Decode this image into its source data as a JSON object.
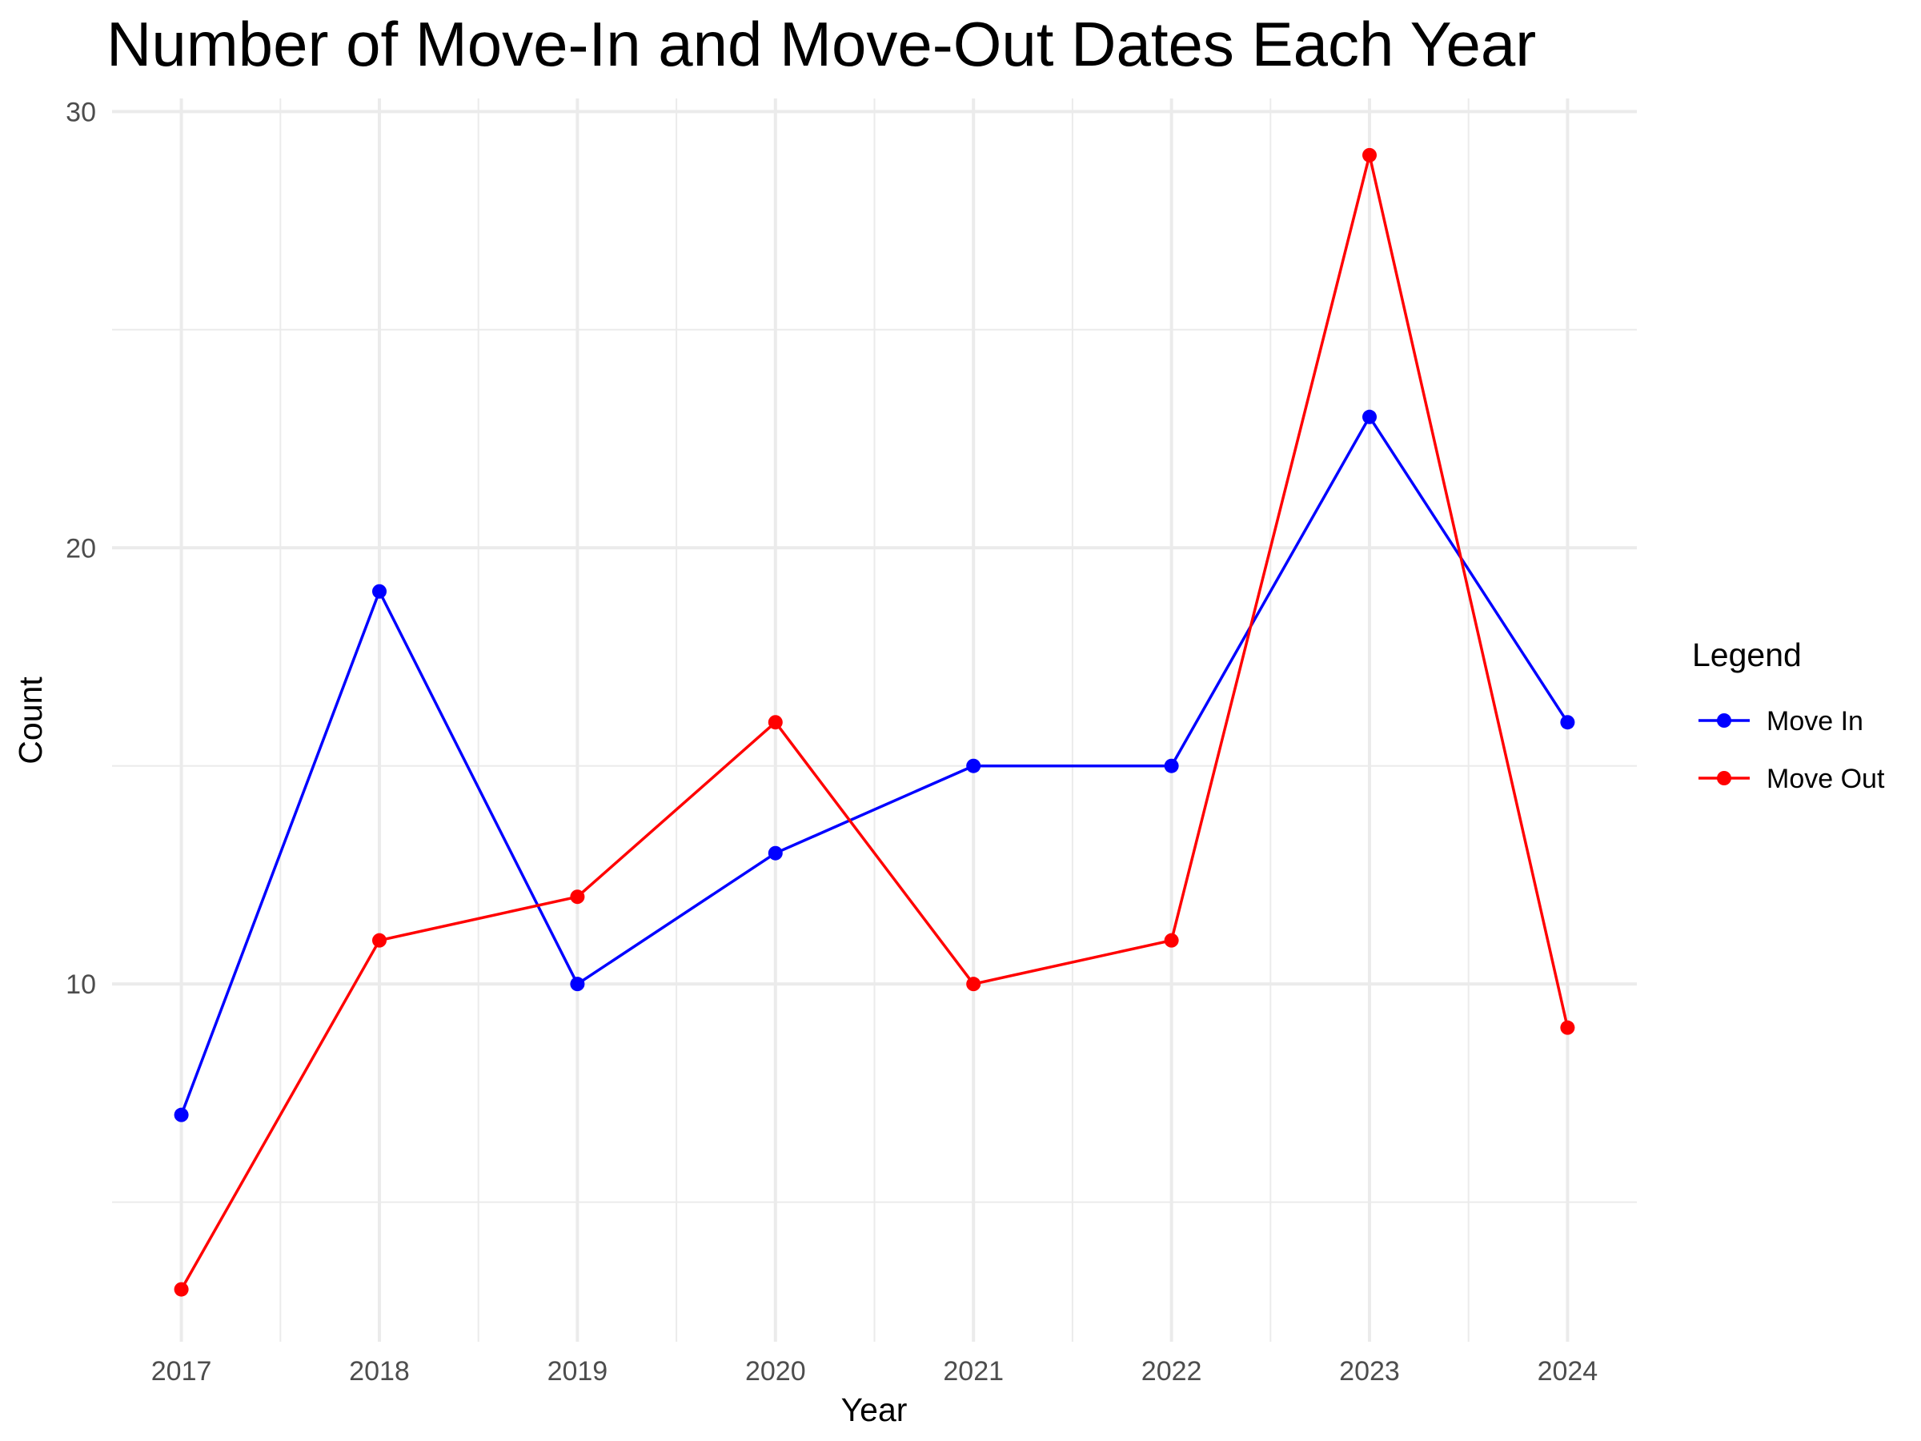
{
  "chart_data": {
    "type": "line",
    "title": "Number of Move-In and Move-Out Dates Each Year",
    "xlabel": "Year",
    "ylabel": "Count",
    "x": [
      2017,
      2018,
      2019,
      2020,
      2021,
      2022,
      2023,
      2024
    ],
    "x_tick_labels": [
      "2017",
      "2018",
      "2019",
      "2020",
      "2021",
      "2022",
      "2023",
      "2024"
    ],
    "y_tick_labels": [
      "10",
      "20",
      "30"
    ],
    "y_ticks": [
      10,
      20,
      30
    ],
    "y_minor_ticks": [
      5,
      15,
      25
    ],
    "ylim": [
      1.8,
      30.3
    ],
    "xlim": [
      2016.65,
      2024.35
    ],
    "grid": true,
    "legend": {
      "title": "Legend",
      "placement": "right"
    },
    "series": [
      {
        "name": "Move In",
        "color": "#0000ff",
        "values": [
          7,
          19,
          10,
          13,
          15,
          15,
          23,
          16
        ]
      },
      {
        "name": "Move Out",
        "color": "#ff0000",
        "values": [
          3,
          11,
          12,
          16,
          10,
          11,
          29,
          9
        ]
      }
    ]
  }
}
